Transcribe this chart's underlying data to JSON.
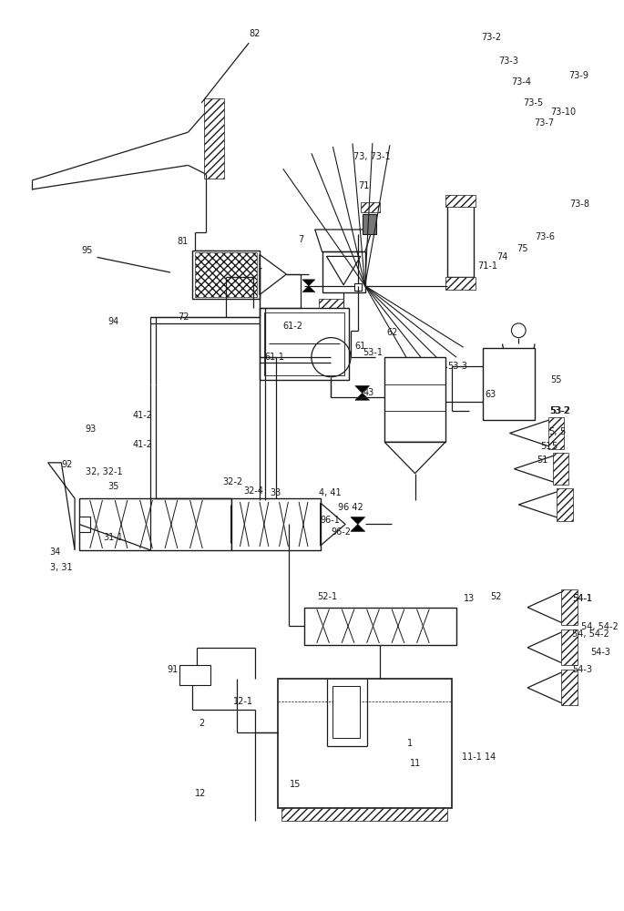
{
  "bg_color": "#ffffff",
  "line_color": "#1a1a1a",
  "fig_width": 6.85,
  "fig_height": 10.0,
  "dpi": 100
}
